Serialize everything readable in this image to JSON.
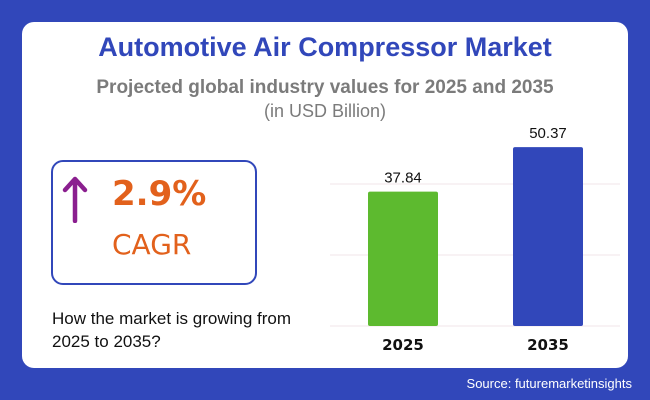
{
  "header": {
    "title": "Automotive Air Compressor Market",
    "subtitle": "Projected global industry values for 2025 and 2035",
    "unit": "(in USD Billion)"
  },
  "cagr": {
    "value": "2.9%",
    "label": "CAGR",
    "icon": "arrow-up-icon",
    "arrow_color": "#8b1f8f",
    "text_color": "#e2611c"
  },
  "question": "How the market is growing from 2025 to 2035?",
  "source": "Source: futuremarketinsights",
  "colors": {
    "background": "#3147ba",
    "title": "#3147ba"
  },
  "chart_data": {
    "type": "bar",
    "categories": [
      "2025",
      "2035"
    ],
    "values": [
      37.84,
      50.37
    ],
    "value_labels": [
      "37.84",
      "50.37"
    ],
    "bar_colors": [
      "#5dba2f",
      "#3147ba"
    ],
    "ylim": [
      0,
      60
    ],
    "gridlines": [
      0,
      20,
      40
    ],
    "grid": true,
    "xlabel": "",
    "ylabel": ""
  }
}
